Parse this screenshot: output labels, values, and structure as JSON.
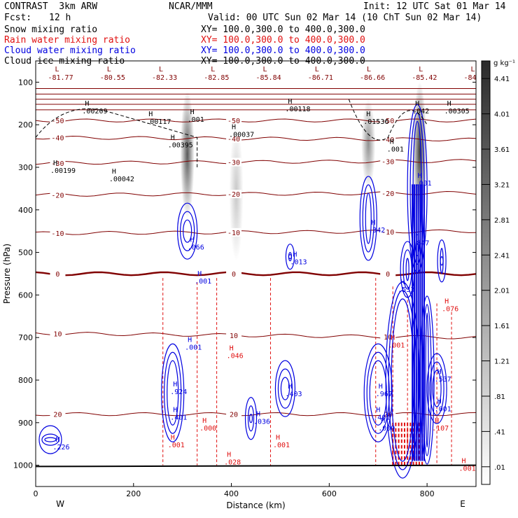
{
  "header": {
    "left_title": "CONTRAST  3km ARW",
    "center_title": "NCAR/MMM",
    "init": "Init: 12 UTC Sat 01 Mar 14",
    "fcst_label": "Fcst:",
    "fcst_value": "12 h",
    "valid": "Valid: 00 UTC Sun 02 Mar 14 (10 ChT Sun 02 Mar 14)"
  },
  "fields": [
    {
      "name": "Snow mixing ratio",
      "xy": "XY= 100.0,300.0 to 400.0,300.0",
      "color": "#000000"
    },
    {
      "name": "Rain water mixing ratio",
      "xy": "XY= 100.0,300.0 to 400.0,300.0",
      "color": "#e01010"
    },
    {
      "name": "Cloud water mixing ratio",
      "xy": "XY= 100.0,300.0 to 400.0,300.0",
      "color": "#0000e0"
    },
    {
      "name": "Cloud ice mixing ratio",
      "xy": "XY= 100.0,300.0 to 400.0,300.0",
      "color": "#000000"
    }
  ],
  "chart_data": {
    "type": "heatmap",
    "xlabel": "Distance (km)",
    "ylabel": "Pressure (hPa)",
    "xlim": [
      0,
      900
    ],
    "ylim": [
      1050,
      50
    ],
    "x_ticks": [
      0,
      200,
      400,
      600,
      800
    ],
    "y_ticks": [
      100,
      200,
      300,
      400,
      500,
      600,
      700,
      800,
      900,
      1000
    ],
    "x_end_labels": {
      "left": "W",
      "right": "E"
    },
    "colorbar": {
      "unit": "g kg⁻¹",
      "ticks": [
        "4.41",
        "4.01",
        "3.61",
        "3.21",
        "2.81",
        "2.41",
        "2.01",
        "1.61",
        "1.21",
        ".81",
        ".41",
        ".01"
      ],
      "tick_values": [
        4.41,
        4.01,
        3.61,
        3.21,
        2.81,
        2.41,
        2.01,
        1.61,
        1.21,
        0.81,
        0.41,
        0.01
      ]
    },
    "snow_columns": [
      {
        "x": 310,
        "p_top": 120,
        "p_bottom": 420,
        "peak": 2.4
      },
      {
        "x": 410,
        "p_top": 200,
        "p_bottom": 520,
        "peak": 0.8
      },
      {
        "x": 680,
        "p_top": 140,
        "p_bottom": 350,
        "peak": 1.6
      },
      {
        "x": 785,
        "p_top": 100,
        "p_bottom": 430,
        "peak": 2.8
      }
    ],
    "temperature_contours": [
      {
        "label": "-50",
        "x": [
          0,
          900
        ],
        "p": [
          190,
          190
        ]
      },
      {
        "label": "-40",
        "x": [
          0,
          900
        ],
        "p": [
          230,
          235
        ]
      },
      {
        "label": "-30",
        "x": [
          0,
          900
        ],
        "p": [
          290,
          285
        ]
      },
      {
        "label": "-20",
        "x": [
          0,
          900
        ],
        "p": [
          365,
          360
        ]
      },
      {
        "label": "-10",
        "x": [
          0,
          900
        ],
        "p": [
          455,
          450
        ]
      },
      {
        "label": "0",
        "x": [
          0,
          900
        ],
        "p": [
          550,
          550
        ]
      },
      {
        "label": "10",
        "x": [
          0,
          900
        ],
        "p": [
          690,
          700
        ]
      },
      {
        "label": "20",
        "x": [
          0,
          900
        ],
        "p": [
          880,
          880
        ]
      }
    ],
    "top_lows": [
      "-81.77",
      "-80.55",
      "-82.33",
      "-82.85",
      "-85.84",
      "-86.71",
      "-86.66",
      "-85.42",
      "-84"
    ],
    "h_labels": [
      {
        "x": 95,
        "p": 160,
        "text": ".00209",
        "color": "#000000"
      },
      {
        "x": 225,
        "p": 185,
        "text": ".00117",
        "color": "#000000"
      },
      {
        "x": 310,
        "p": 180,
        "text": ".001",
        "color": "#000000"
      },
      {
        "x": 270,
        "p": 240,
        "text": ".00395",
        "color": "#000000"
      },
      {
        "x": 395,
        "p": 215,
        "text": ".00037",
        "color": "#000000"
      },
      {
        "x": 510,
        "p": 155,
        "text": ".00118",
        "color": "#000000"
      },
      {
        "x": 670,
        "p": 185,
        "text": ".01536",
        "color": "#000000"
      },
      {
        "x": 770,
        "p": 160,
        "text": ".042",
        "color": "#000000"
      },
      {
        "x": 835,
        "p": 160,
        "text": ".00305",
        "color": "#000000"
      },
      {
        "x": 30,
        "p": 300,
        "text": ".00199",
        "color": "#000000"
      },
      {
        "x": 150,
        "p": 320,
        "text": ".00042",
        "color": "#000000"
      },
      {
        "x": 718,
        "p": 250,
        "text": ".001",
        "color": "#000000"
      },
      {
        "x": 310,
        "p": 480,
        "text": ".066",
        "color": "#0000e0"
      },
      {
        "x": 520,
        "p": 515,
        "text": ".013",
        "color": "#0000e0"
      },
      {
        "x": 680,
        "p": 440,
        "text": ".342",
        "color": "#0000e0"
      },
      {
        "x": 770,
        "p": 470,
        "text": ".847",
        "color": "#0000e0"
      },
      {
        "x": 775,
        "p": 330,
        "text": ".001",
        "color": "#0000e0"
      },
      {
        "x": 740,
        "p": 580,
        "text": ".533",
        "color": "#0000e0"
      },
      {
        "x": 325,
        "p": 560,
        "text": ".001",
        "color": "#0000e0"
      },
      {
        "x": 305,
        "p": 715,
        "text": ".001",
        "color": "#0000e0"
      },
      {
        "x": 275,
        "p": 820,
        "text": ".924",
        "color": "#0000e0"
      },
      {
        "x": 510,
        "p": 825,
        "text": ".403",
        "color": "#0000e0"
      },
      {
        "x": 695,
        "p": 825,
        "text": ".967",
        "color": "#0000e0"
      },
      {
        "x": 815,
        "p": 790,
        "text": ".537",
        "color": "#0000e0"
      },
      {
        "x": 275,
        "p": 880,
        "text": ".401",
        "color": "#0000e0"
      },
      {
        "x": 690,
        "p": 880,
        "text": ".401",
        "color": "#0000e0"
      },
      {
        "x": 445,
        "p": 890,
        "text": ".036",
        "color": "#0000e0"
      },
      {
        "x": 35,
        "p": 950,
        "text": ".226",
        "color": "#0000e0"
      },
      {
        "x": 700,
        "p": 905,
        "text": ".000",
        "color": "#0000e0"
      },
      {
        "x": 815,
        "p": 860,
        "text": ".001",
        "color": "#0000e0"
      },
      {
        "x": 390,
        "p": 735,
        "text": ".046",
        "color": "#e01010"
      },
      {
        "x": 830,
        "p": 625,
        "text": ".076",
        "color": "#e01010"
      },
      {
        "x": 810,
        "p": 905,
        "text": ".107",
        "color": "#e01010"
      },
      {
        "x": 385,
        "p": 985,
        "text": ".028",
        "color": "#e01010"
      },
      {
        "x": 485,
        "p": 945,
        "text": ".001",
        "color": "#e01010"
      },
      {
        "x": 270,
        "p": 945,
        "text": ".001",
        "color": "#e01010"
      },
      {
        "x": 335,
        "p": 905,
        "text": ".000",
        "color": "#e01010"
      },
      {
        "x": 720,
        "p": 710,
        "text": ".001",
        "color": "#e01010"
      },
      {
        "x": 865,
        "p": 1000,
        "text": ".001",
        "color": "#e01010"
      }
    ]
  }
}
